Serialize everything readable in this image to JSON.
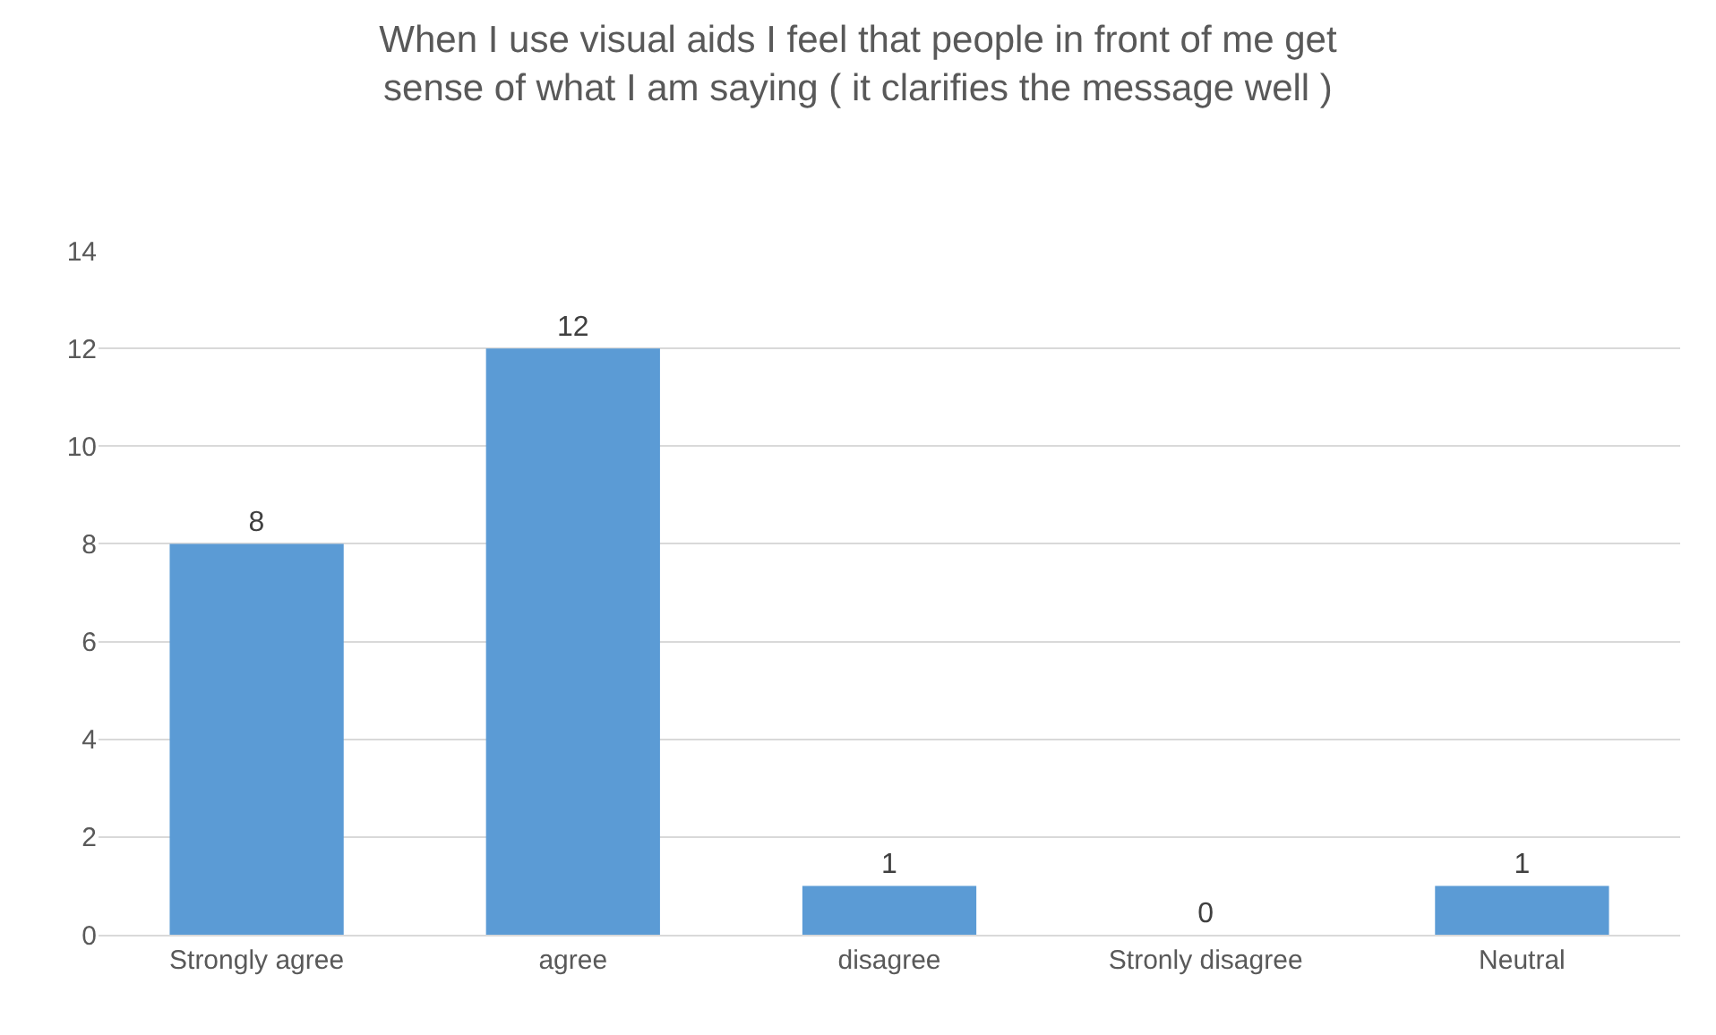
{
  "chart_data": {
    "type": "bar",
    "title": "When I use visual aids I feel that people in front of me get sense of what I am saying ( it clarifies the message well )",
    "categories": [
      "Strongly agree",
      "agree",
      "disagree",
      "Stronly disagree",
      "Neutral"
    ],
    "values": [
      8,
      12,
      1,
      0,
      1
    ],
    "color": "#5b9bd5",
    "ylim": [
      0,
      14
    ],
    "yticks": [
      0,
      2,
      4,
      6,
      8,
      10,
      12,
      14
    ],
    "grid": "y",
    "data_labels": true,
    "legend": false
  }
}
